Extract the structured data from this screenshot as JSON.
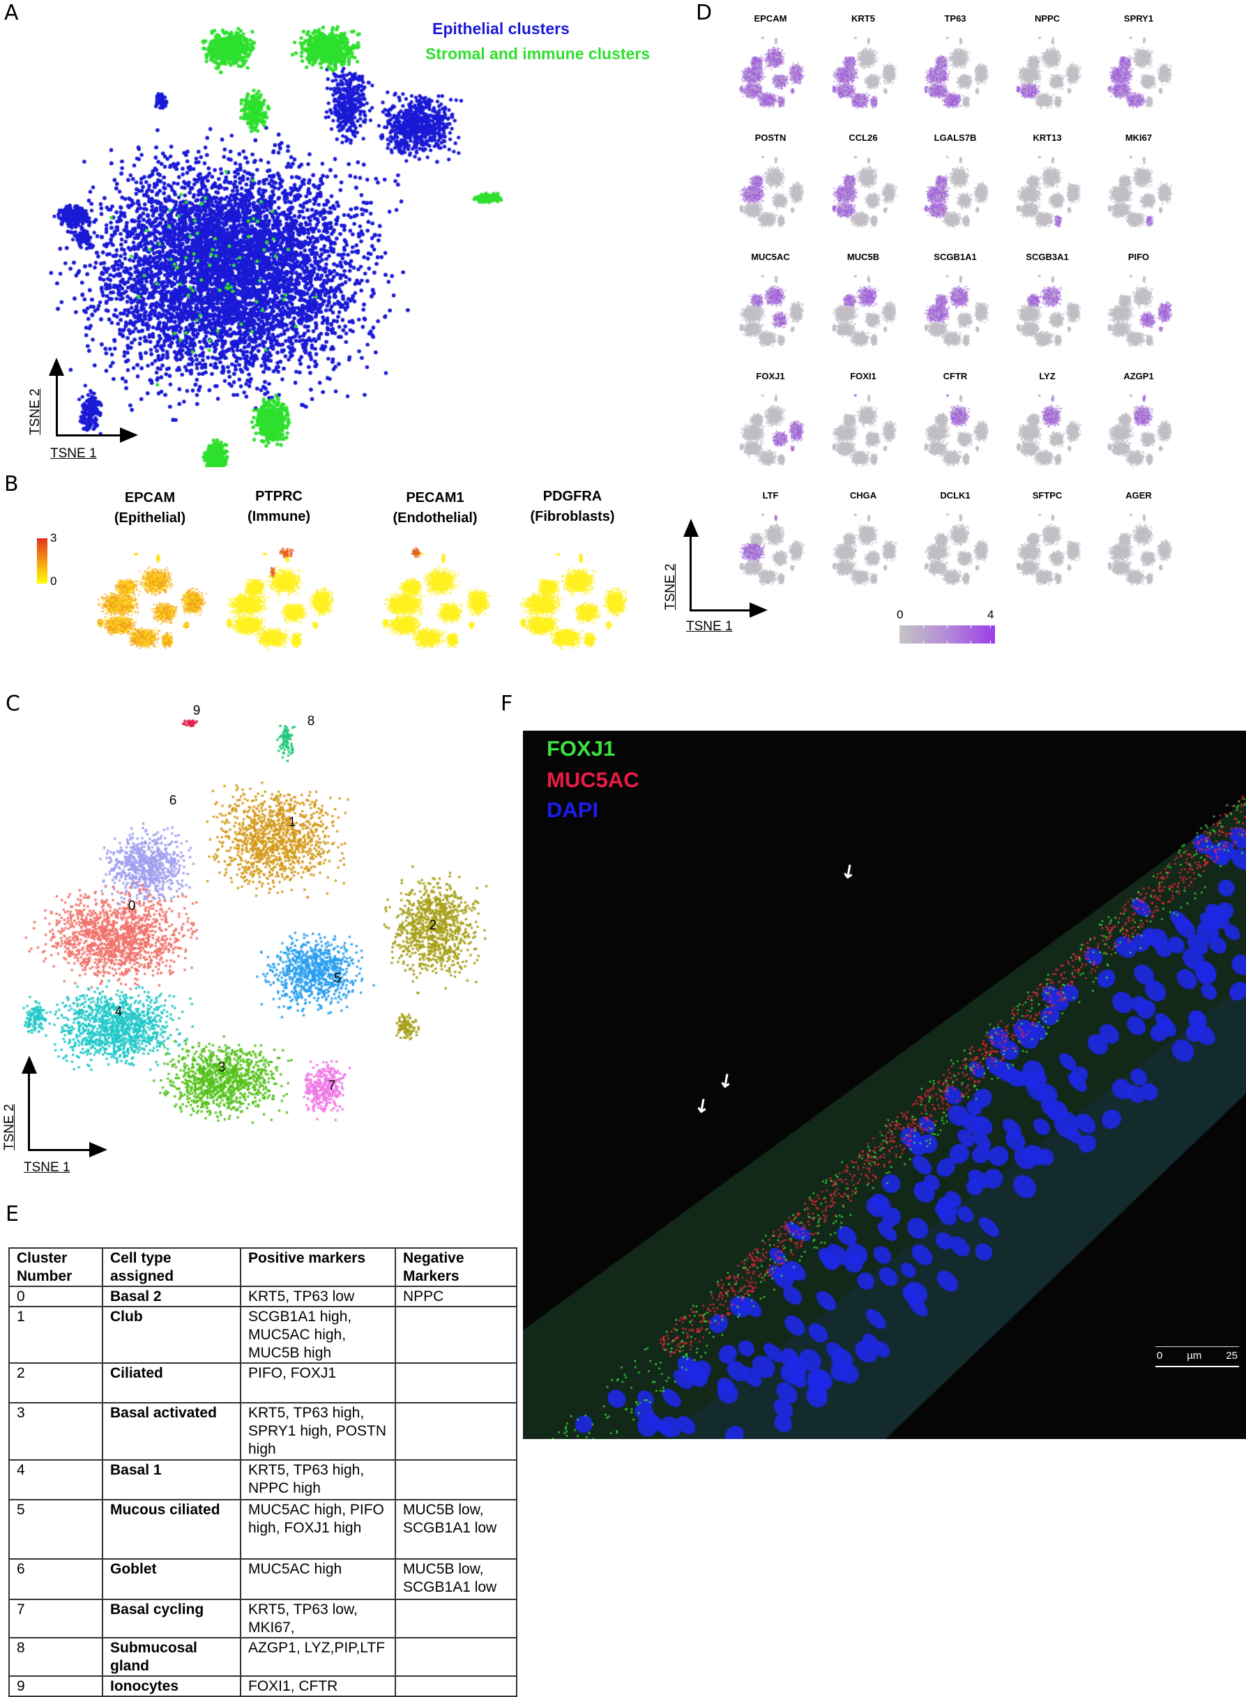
{
  "panels": {
    "A": {
      "label": "A",
      "legend": [
        {
          "text": "Epithelial clusters",
          "color": "#1a1ad6"
        },
        {
          "text": "Stromal and immune clusters",
          "color": "#2ee02e"
        }
      ],
      "xaxis": "TSNE 1",
      "yaxis": "TSNE 2"
    },
    "B": {
      "label": "B",
      "colorbar": {
        "min": "0",
        "max": "3",
        "low_color": "#ffff00",
        "high_color": "#e4321b"
      },
      "plots": [
        {
          "gene": "EPCAM",
          "celltype": "(Epithelial)"
        },
        {
          "gene": "PTPRC",
          "celltype": "(Immune)"
        },
        {
          "gene": "PECAM1",
          "celltype": "(Endothelial)"
        },
        {
          "gene": "PDGFRA",
          "celltype": "(Fibroblasts)"
        }
      ]
    },
    "C": {
      "label": "C",
      "xaxis": "TSNE 1",
      "yaxis": "TSNE 2",
      "clusters": [
        {
          "id": "0",
          "color": "#f0736b"
        },
        {
          "id": "1",
          "color": "#d49a1b"
        },
        {
          "id": "2",
          "color": "#a8a01a"
        },
        {
          "id": "3",
          "color": "#55c21c"
        },
        {
          "id": "4",
          "color": "#22c8c8"
        },
        {
          "id": "5",
          "color": "#2a9ff0"
        },
        {
          "id": "6",
          "color": "#a09ef0"
        },
        {
          "id": "7",
          "color": "#f07ae6"
        },
        {
          "id": "8",
          "color": "#22c878"
        },
        {
          "id": "9",
          "color": "#e0204a"
        }
      ]
    },
    "D": {
      "label": "D",
      "xaxis": "TSNE 1",
      "yaxis": "TSNE 2",
      "colorbar": {
        "min": "0",
        "max": "4",
        "low_color": "#c4c4c4",
        "high_color": "#9a3de8"
      },
      "genes": [
        "EPCAM",
        "KRT5",
        "TP63",
        "NPPC",
        "SPRY1",
        "POSTN",
        "CCL26",
        "LGALS7B",
        "KRT13",
        "MKI67",
        "MUC5AC",
        "MUC5B",
        "SCGB1A1",
        "SCGB3A1",
        "PIFO",
        "FOXJ1",
        "FOXI1",
        "CFTR",
        "LYZ",
        "AZGP1",
        "LTF",
        "CHGA",
        "DCLK1",
        "SFTPC",
        "AGER"
      ]
    },
    "E": {
      "label": "E",
      "headers": [
        "Cluster Number",
        "Cell type assigned",
        "Positive markers",
        "Negative Markers"
      ],
      "rows": [
        {
          "cluster": "0",
          "cell_type": "Basal 2",
          "positive": "KRT5, TP63 low",
          "negative": "NPPC"
        },
        {
          "cluster": "1",
          "cell_type": "Club",
          "positive": "SCGB1A1 high, MUC5AC high, MUC5B high",
          "negative": ""
        },
        {
          "cluster": "2",
          "cell_type": "Ciliated",
          "positive": "PIFO, FOXJ1",
          "negative": ""
        },
        {
          "cluster": "3",
          "cell_type": "Basal activated",
          "positive": "KRT5, TP63 high, SPRY1 high, POSTN high",
          "negative": ""
        },
        {
          "cluster": "4",
          "cell_type": "Basal 1",
          "positive": "KRT5, TP63 high, NPPC high",
          "negative": ""
        },
        {
          "cluster": "5",
          "cell_type": "Mucous ciliated",
          "positive": "MUC5AC high, PIFO high, FOXJ1 high",
          "negative": "MUC5B low, SCGB1A1 low"
        },
        {
          "cluster": "6",
          "cell_type": "Goblet",
          "positive": "MUC5AC high",
          "negative": "MUC5B low, SCGB1A1 low"
        },
        {
          "cluster": "7",
          "cell_type": "Basal cycling",
          "positive": "KRT5, TP63 low, MKI67,",
          "negative": ""
        },
        {
          "cluster": "8",
          "cell_type": "Submucosal gland",
          "positive": "AZGP1, LYZ,PIP,LTF",
          "negative": ""
        },
        {
          "cluster": "9",
          "cell_type": "Ionocytes",
          "positive": "FOXI1, CFTR",
          "negative": ""
        }
      ]
    },
    "F": {
      "label": "F",
      "legend": [
        {
          "text": "FOXJ1",
          "color": "#3ee03e"
        },
        {
          "text": "MUC5AC",
          "color": "#ec1a44"
        },
        {
          "text": "DAPI",
          "color": "#1c1cf0"
        }
      ],
      "scalebar": {
        "min": "0",
        "unit": "µm",
        "max": "25"
      }
    }
  },
  "chart_data": [
    {
      "type": "scatter",
      "title": "A",
      "xlabel": "TSNE 1",
      "ylabel": "TSNE 2",
      "legend": [
        "Epithelial clusters",
        "Stromal and immune clusters"
      ],
      "series": [
        {
          "name": "Epithelial clusters",
          "color": "#1a1ad6"
        },
        {
          "name": "Stromal and immune clusters",
          "color": "#2ee02e"
        }
      ],
      "grid": false
    },
    {
      "type": "scatter",
      "title": "B",
      "facets": [
        "EPCAM (Epithelial)",
        "PTPRC (Immune)",
        "PECAM1 (Endothelial)",
        "PDGFRA (Fibroblasts)"
      ],
      "color_scale": {
        "min": 0,
        "max": 3,
        "colors": [
          "#ffff00",
          "#e4321b"
        ]
      }
    },
    {
      "type": "scatter",
      "title": "C",
      "xlabel": "TSNE 1",
      "ylabel": "TSNE 2",
      "categories": [
        "0",
        "1",
        "2",
        "3",
        "4",
        "5",
        "6",
        "7",
        "8",
        "9"
      ],
      "cluster_label_positions": {
        "0": [
          189,
          1300
        ],
        "1": [
          419,
          1180
        ],
        "2": [
          621,
          1328
        ],
        "3": [
          318,
          1532
        ],
        "4": [
          170,
          1452
        ],
        "5": [
          484,
          1404
        ],
        "6": [
          248,
          1149
        ],
        "7": [
          476,
          1558
        ],
        "8": [
          446,
          1035
        ],
        "9": [
          282,
          1020
        ]
      }
    },
    {
      "type": "scatter",
      "title": "D",
      "xlabel": "TSNE 1",
      "ylabel": "TSNE 2",
      "facets": [
        "EPCAM",
        "KRT5",
        "TP63",
        "NPPC",
        "SPRY1",
        "POSTN",
        "CCL26",
        "LGALS7B",
        "KRT13",
        "MKI67",
        "MUC5AC",
        "MUC5B",
        "SCGB1A1",
        "SCGB3A1",
        "PIFO",
        "FOXJ1",
        "FOXI1",
        "CFTR",
        "LYZ",
        "AZGP1",
        "LTF",
        "CHGA",
        "DCLK1",
        "SFTPC",
        "AGER"
      ],
      "color_scale": {
        "min": 0,
        "max": 4,
        "colors": [
          "#c4c4c4",
          "#9a3de8"
        ]
      }
    },
    {
      "type": "table",
      "title": "E",
      "columns": [
        "Cluster Number",
        "Cell type assigned",
        "Positive markers",
        "Negative Markers"
      ],
      "rows": [
        [
          "0",
          "Basal 2",
          "KRT5, TP63 low",
          "NPPC"
        ],
        [
          "1",
          "Club",
          "SCGB1A1 high, MUC5AC high, MUC5B high",
          ""
        ],
        [
          "2",
          "Ciliated",
          "PIFO, FOXJ1",
          ""
        ],
        [
          "3",
          "Basal activated",
          "KRT5, TP63 high, SPRY1 high, POSTN high",
          ""
        ],
        [
          "4",
          "Basal 1",
          "KRT5, TP63 high, NPPC high",
          ""
        ],
        [
          "5",
          "Mucous ciliated",
          "MUC5AC high, PIFO high, FOXJ1 high",
          "MUC5B low, SCGB1A1 low"
        ],
        [
          "6",
          "Goblet",
          "MUC5AC high",
          "MUC5B low, SCGB1A1 low"
        ],
        [
          "7",
          "Basal cycling",
          "KRT5, TP63 low, MKI67,",
          ""
        ],
        [
          "8",
          "Submucosal gland",
          "AZGP1, LYZ,PIP,LTF",
          ""
        ],
        [
          "9",
          "Ionocytes",
          "FOXI1, CFTR",
          ""
        ]
      ]
    }
  ]
}
